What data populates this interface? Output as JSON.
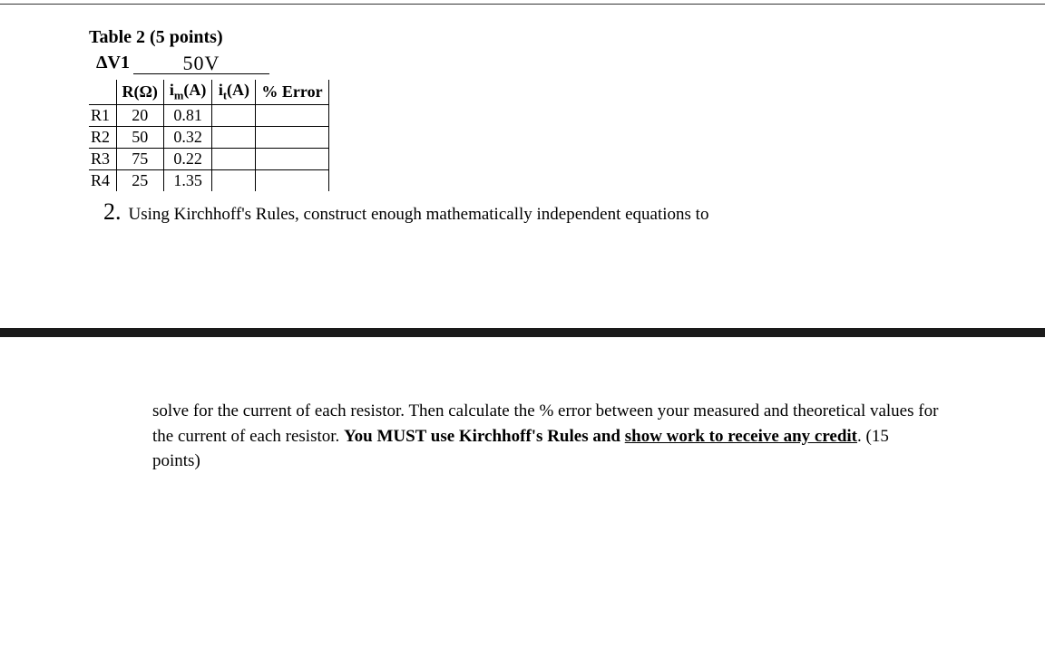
{
  "title": "Table 2 (5 points)",
  "dv": {
    "label": "ΔV1",
    "value": "50V"
  },
  "table": {
    "headers": {
      "c0": "",
      "c1": "R(Ω)",
      "c2_pre": "i",
      "c2_sub": "m",
      "c2_post": "(A)",
      "c3_pre": "i",
      "c3_sub": "t",
      "c3_post": "(A)",
      "c4": "% Error"
    },
    "rows": [
      {
        "label": "R1",
        "r": "20",
        "im": "0.81",
        "it": "",
        "err": ""
      },
      {
        "label": "R2",
        "r": "50",
        "im": "0.32",
        "it": "",
        "err": ""
      },
      {
        "label": "R3",
        "r": "75",
        "im": "0.22",
        "it": "",
        "err": ""
      },
      {
        "label": "R4",
        "r": "25",
        "im": "1.35",
        "it": "",
        "err": ""
      }
    ]
  },
  "question": {
    "number": "2.",
    "line1": "Using Kirchhoff's Rules, construct enough mathematically independent equations to",
    "line2a": "solve for the current of each resistor.  Then calculate the % error between your measured and theoretical values for the current of each resistor. ",
    "bold1": "You MUST use Kirchhoff's Rules and ",
    "bold_underline": "show work to receive any credit",
    "line2b": ". (15 points)"
  }
}
